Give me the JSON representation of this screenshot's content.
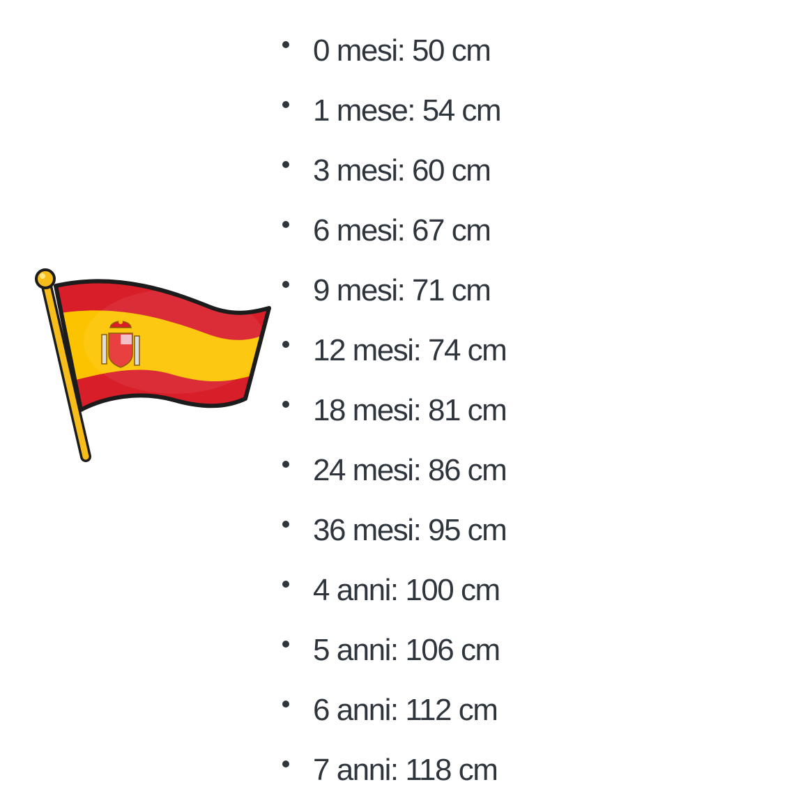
{
  "flag": {
    "icon": "spain-flag-icon",
    "colors": {
      "red": "#d81e28",
      "yellow": "#fcc400",
      "outline": "#1c1c1c"
    }
  },
  "list": {
    "items": [
      {
        "label": "0 mesi: 50 cm"
      },
      {
        "label": "1 mese: 54 cm"
      },
      {
        "label": "3 mesi: 60 cm"
      },
      {
        "label": "6 mesi: 67 cm"
      },
      {
        "label": "9 mesi: 71 cm"
      },
      {
        "label": "12 mesi: 74 cm"
      },
      {
        "label": "18 mesi: 81 cm"
      },
      {
        "label": "24 mesi: 86 cm"
      },
      {
        "label": "36 mesi: 95 cm"
      },
      {
        "label": "4 anni: 100 cm"
      },
      {
        "label": "5 anni: 106 cm"
      },
      {
        "label": "6 anni: 112 cm"
      },
      {
        "label": "7 anni: 118 cm"
      }
    ]
  }
}
